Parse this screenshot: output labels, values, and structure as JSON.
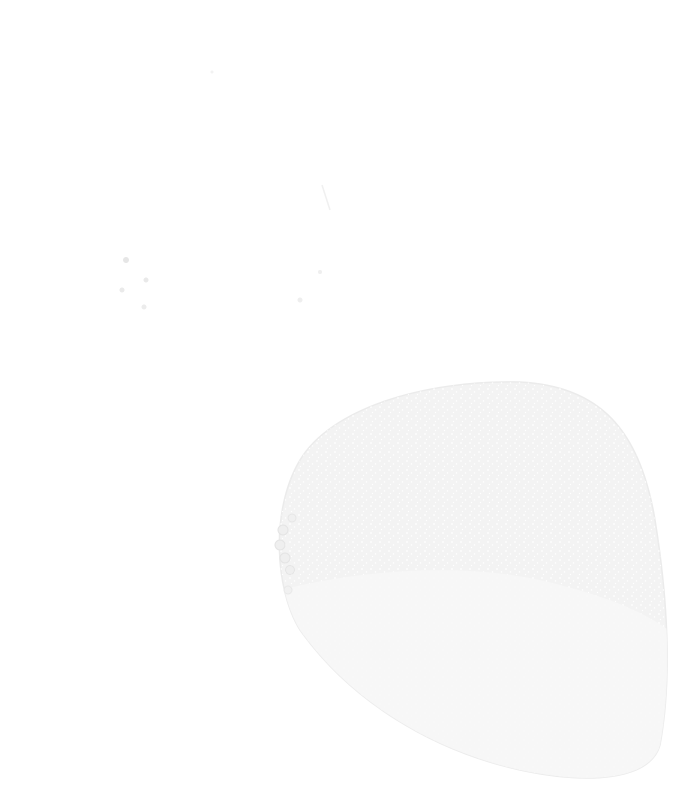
{
  "image": {
    "kind": "faint-speckled-blob-photo",
    "background_color": "#ffffff",
    "blob_fill_color": "#f3f3f3",
    "blob_edge_color": "#e9e9e9",
    "speckle_color": "#ffffff",
    "lower_shade_color": "#f7f7f7",
    "specks_color": "#d6d6d6"
  }
}
